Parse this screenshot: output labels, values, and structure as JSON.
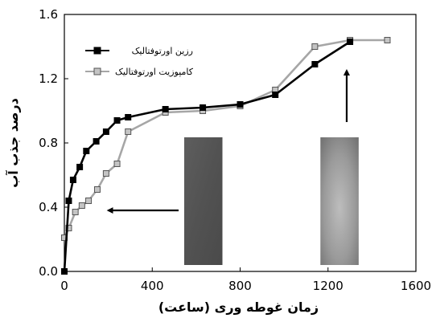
{
  "chart_data": {
    "type": "line",
    "xlabel": "زمان غوطه وری (ساعت)",
    "ylabel": "درصد جذب آب",
    "xlim": [
      0,
      1600
    ],
    "ylim": [
      0,
      1.6
    ],
    "x_ticks": [
      "0",
      "400",
      "800",
      "1200",
      "1600"
    ],
    "y_ticks": [
      "0.0",
      "0.4",
      "0.8",
      "1.2",
      "1.6"
    ],
    "grid": false,
    "legend": "top-left",
    "series": [
      {
        "name": "رزین اورتوفتالیک",
        "color": "#000000",
        "marker": "filled-square",
        "x": [
          0,
          20,
          40,
          70,
          100,
          145,
          190,
          240,
          290,
          460,
          630,
          800,
          960,
          1140,
          1300
        ],
        "y": [
          0.0,
          0.44,
          0.57,
          0.65,
          0.75,
          0.81,
          0.87,
          0.94,
          0.96,
          1.01,
          1.02,
          1.04,
          1.1,
          1.29,
          1.43
        ]
      },
      {
        "name": "کامپوزیت اورتوفتالیک",
        "color": "#8c8c8c",
        "marker": "gray-square",
        "x": [
          0,
          20,
          50,
          80,
          110,
          150,
          190,
          240,
          290,
          460,
          630,
          800,
          960,
          1140,
          1300,
          1470
        ],
        "y": [
          0.21,
          0.27,
          0.37,
          0.41,
          0.44,
          0.51,
          0.61,
          0.67,
          0.87,
          0.99,
          1.0,
          1.03,
          1.13,
          1.4,
          1.44,
          1.44
        ]
      }
    ],
    "annotations": {
      "arrows": [
        {
          "from": [
            520,
            0.38
          ],
          "to": [
            200,
            0.38
          ]
        },
        {
          "from": [
            1285,
            0.93
          ],
          "to": [
            1285,
            1.25
          ]
        }
      ],
      "photos": [
        {
          "x_range": [
            560,
            800
          ],
          "y_range": [
            0.0,
            0.84
          ],
          "tone": "dark-gray"
        },
        {
          "x_range": [
            1180,
            1420
          ],
          "y_range": [
            0.0,
            0.84
          ],
          "tone": "light-gray-gradient"
        }
      ]
    }
  }
}
